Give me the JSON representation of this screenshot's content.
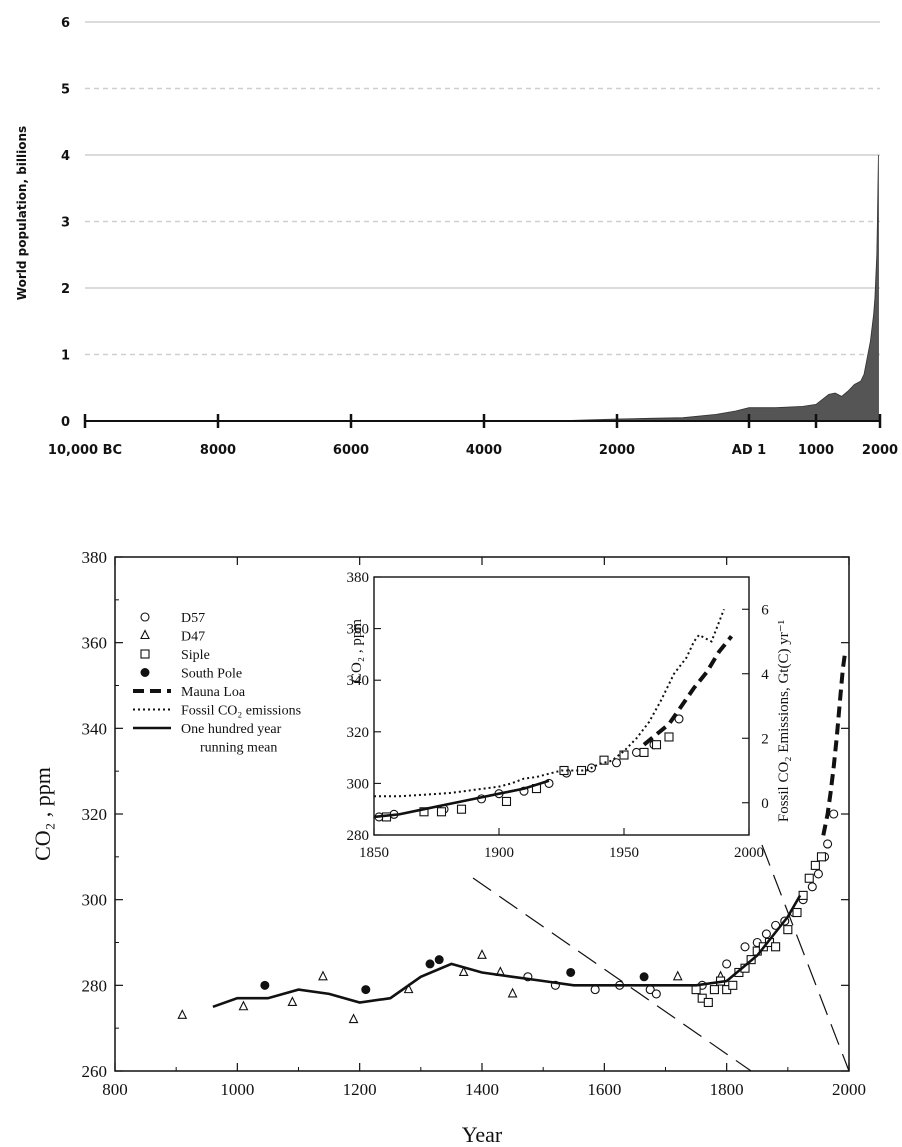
{
  "chart_data": [
    {
      "type": "area",
      "ylabel": "World population, billions",
      "ylim": [
        0,
        6
      ],
      "xlim": [
        -10000,
        2000
      ],
      "grid": "dashed horizontal",
      "y_ticks": [
        "0",
        "1",
        "2",
        "3",
        "4",
        "5",
        "6"
      ],
      "x_ticks": [
        {
          "value": -10000,
          "label": "10,000 BC"
        },
        {
          "value": -8000,
          "label": "8000"
        },
        {
          "value": -6000,
          "label": "6000"
        },
        {
          "value": -4000,
          "label": "4000"
        },
        {
          "value": -2000,
          "label": "2000"
        },
        {
          "value": 1,
          "label": "AD 1"
        },
        {
          "value": 1000,
          "label": "1000"
        },
        {
          "value": 2000,
          "label": "2000"
        }
      ],
      "x": [
        -10000,
        -3000,
        -2000,
        -1500,
        -1000,
        -500,
        -200,
        1,
        400,
        800,
        1000,
        1200,
        1300,
        1400,
        1500,
        1600,
        1700,
        1750,
        1800,
        1850,
        1900,
        1920,
        1940,
        1950,
        1960,
        1970,
        1975
      ],
      "values": [
        0.0,
        0.0,
        0.03,
        0.04,
        0.05,
        0.1,
        0.15,
        0.2,
        0.2,
        0.22,
        0.25,
        0.4,
        0.42,
        0.37,
        0.45,
        0.55,
        0.6,
        0.7,
        0.95,
        1.2,
        1.6,
        1.85,
        2.3,
        2.5,
        3.0,
        3.7,
        4.0
      ],
      "color": "#555555"
    },
    {
      "type": "scatter",
      "xlabel": "Year",
      "ylabel": "CO₂ , ppm",
      "xlim": [
        800,
        2000
      ],
      "ylim": [
        260,
        380
      ],
      "x_ticks": [
        "800",
        "1000",
        "1200",
        "1400",
        "1600",
        "1800",
        "2000"
      ],
      "y_ticks": [
        "260",
        "280",
        "300",
        "320",
        "340",
        "360",
        "380"
      ],
      "legend": "upper-left",
      "legend_entries": [
        "D57",
        "D47",
        "Siple",
        "South Pole",
        "Mauna Loa",
        "Fossil CO₂ emissions",
        "One hundred year",
        "running mean"
      ],
      "series": [
        {
          "name": "D57",
          "marker": "open-circle",
          "x": [
            1475,
            1520,
            1585,
            1625,
            1675,
            1685,
            1760,
            1790,
            1800,
            1830,
            1850,
            1865,
            1880,
            1895,
            1910,
            1925,
            1940,
            1950,
            1960,
            1965,
            1975
          ],
          "y": [
            282,
            280,
            279,
            280,
            279,
            278,
            280,
            281,
            285,
            289,
            290,
            292,
            294,
            295,
            297,
            300,
            303,
            306,
            310,
            313,
            320
          ]
        },
        {
          "name": "D47",
          "marker": "open-triangle",
          "x": [
            910,
            1010,
            1090,
            1140,
            1190,
            1280,
            1370,
            1400,
            1430,
            1450,
            1720,
            1790
          ],
          "y": [
            273,
            275,
            276,
            282,
            272,
            279,
            283,
            287,
            283,
            278,
            282,
            282
          ]
        },
        {
          "name": "Siple",
          "marker": "open-square",
          "x": [
            1750,
            1760,
            1770,
            1780,
            1790,
            1800,
            1810,
            1820,
            1830,
            1840,
            1850,
            1860,
            1870,
            1880,
            1900,
            1915,
            1925,
            1935,
            1945,
            1955
          ],
          "y": [
            279,
            277,
            276,
            279,
            281,
            279,
            280,
            283,
            284,
            286,
            288,
            289,
            290,
            289,
            293,
            297,
            301,
            305,
            308,
            310
          ]
        },
        {
          "name": "South Pole",
          "marker": "filled-circle",
          "x": [
            1045,
            1210,
            1315,
            1330,
            1545,
            1665
          ],
          "y": [
            280,
            279,
            285,
            286,
            283,
            282
          ]
        },
        {
          "name": "Mauna Loa",
          "style": "thick-dashed",
          "x": [
            1958,
            1965,
            1970,
            1975,
            1980,
            1985,
            1990,
            1993
          ],
          "y": [
            315,
            320,
            325,
            331,
            338,
            346,
            354,
            357
          ]
        },
        {
          "name": "One hundred year running mean",
          "style": "solid",
          "x": [
            960,
            1000,
            1050,
            1100,
            1150,
            1200,
            1250,
            1300,
            1350,
            1400,
            1450,
            1500,
            1550,
            1600,
            1650,
            1700,
            1750,
            1800,
            1850,
            1900,
            1920
          ],
          "y": [
            275,
            277,
            277,
            279,
            278,
            276,
            277,
            282,
            285,
            283,
            282,
            281,
            280,
            280,
            280,
            280,
            280,
            281,
            287,
            296,
            301
          ]
        }
      ],
      "inset": {
        "type": "line",
        "xlim": [
          1850,
          2000
        ],
        "ylim": [
          280,
          380
        ],
        "y2lim": [
          -1,
          7
        ],
        "x_ticks": [
          "1850",
          "1900",
          "1950",
          "2000"
        ],
        "y_ticks": [
          "280",
          "300",
          "320",
          "340",
          "360",
          "380"
        ],
        "y2_ticks": [
          "0",
          "2",
          "4",
          "6"
        ],
        "ylabel": "CO₂ ,  ppm",
        "y2label": "Fossil  CO₂ Emissions,  Gt(C) yr⁻¹",
        "series": [
          {
            "name": "D57",
            "marker": "open-circle",
            "x": [
              1852,
              1858,
              1878,
              1893,
              1900,
              1910,
              1920,
              1927,
              1937,
              1947,
              1955,
              1962,
              1972
            ],
            "y": [
              287,
              288,
              290,
              294,
              296,
              297,
              300,
              304,
              306,
              308,
              312,
              315,
              325
            ]
          },
          {
            "name": "Siple",
            "marker": "open-square",
            "x": [
              1855,
              1870,
              1877,
              1885,
              1903,
              1915,
              1926,
              1933,
              1942,
              1950,
              1958,
              1963,
              1968
            ],
            "y": [
              287,
              289,
              289,
              290,
              293,
              298,
              305,
              305,
              309,
              311,
              312,
              315,
              318
            ]
          },
          {
            "name": "Mauna Loa",
            "style": "thick-dashed",
            "x": [
              1958,
              1963,
              1968,
              1973,
              1978,
              1983,
              1988,
              1993
            ],
            "y": [
              315,
              319,
              323,
              330,
              337,
              343,
              351,
              357
            ]
          },
          {
            "name": "One hundred year running mean",
            "style": "solid",
            "x": [
              1850,
              1860,
              1870,
              1880,
              1890,
              1900,
              1910,
              1920
            ],
            "y": [
              287,
              288,
              290,
              292,
              294,
              296,
              298,
              301
            ]
          },
          {
            "name": "Fossil CO₂ emissions",
            "style": "dotted",
            "axis": "right",
            "x": [
              1850,
              1860,
              1870,
              1880,
              1890,
              1900,
              1905,
              1910,
              1915,
              1920,
              1925,
              1930,
              1935,
              1940,
              1945,
              1950,
              1955,
              1960,
              1965,
              1970,
              1975,
              1978,
              1980,
              1985,
              1990
            ],
            "y": [
              0.2,
              0.2,
              0.25,
              0.3,
              0.4,
              0.5,
              0.6,
              0.75,
              0.8,
              0.9,
              1.0,
              1.0,
              1.0,
              1.2,
              1.3,
              1.6,
              2.0,
              2.5,
              3.2,
              4.0,
              4.5,
              5.0,
              5.2,
              5.0,
              6.0
            ]
          }
        ]
      }
    }
  ]
}
